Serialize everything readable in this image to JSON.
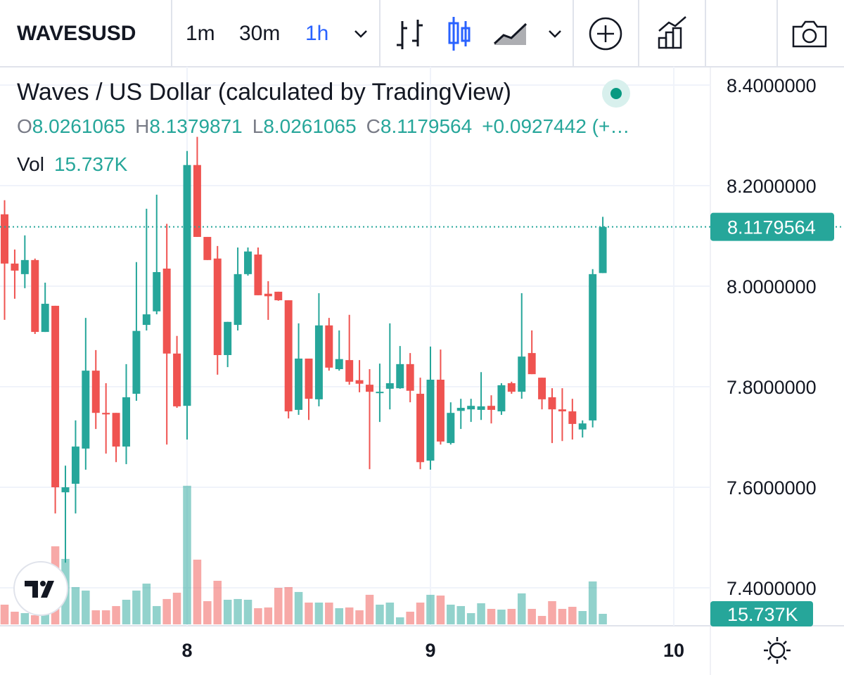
{
  "toolbar": {
    "symbol": "WAVESUSD",
    "intervals": [
      "1m",
      "30m",
      "1h"
    ],
    "active_interval": 2
  },
  "chart_data": {
    "type": "candlestick",
    "title": "Waves / US Dollar (calculated by TradingView)",
    "legend_labels": [
      "O",
      "H",
      "L",
      "C"
    ],
    "change_label": "+0.0927442 (+…",
    "up_color": "#26a69a",
    "down_color": "#ef5350",
    "grid": true,
    "x": [
      7.25,
      7.2917,
      7.3333,
      7.375,
      7.4167,
      7.4583,
      7.5,
      7.5417,
      7.5833,
      7.625,
      7.6667,
      7.7083,
      7.75,
      7.7917,
      7.8333,
      7.875,
      7.9167,
      7.9583,
      8,
      8.0417,
      8.0833,
      8.125,
      8.1667,
      8.2083,
      8.25,
      8.2917,
      8.3333,
      8.375,
      8.4167,
      8.4583,
      8.5,
      8.5417,
      8.5833,
      8.625,
      8.6667,
      8.7083,
      8.75,
      8.7917,
      8.8333,
      8.875,
      8.9167,
      8.9583,
      9,
      9.0417,
      9.0833,
      9.125,
      9.1667,
      9.2083,
      9.25,
      9.2917,
      9.3333,
      9.375,
      9.4167,
      9.4583,
      9.5,
      9.5417,
      9.5833,
      9.625,
      9.6667,
      9.7083
    ],
    "open": [
      8.143,
      8.045,
      8.024,
      8.052,
      7.909,
      7.961,
      7.59,
      7.607,
      7.677,
      7.832,
      7.748,
      7.748,
      7.681,
      7.786,
      7.923,
      7.95,
      8.035,
      7.866,
      7.762,
      8.241,
      8.098,
      8.055,
      7.863,
      7.923,
      8.024,
      8.063,
      7.985,
      7.989,
      7.972,
      7.754,
      7.856,
      7.775,
      7.922,
      7.835,
      7.853,
      7.813,
      7.804,
      7.789,
      7.796,
      7.797,
      7.845,
      7.786,
      7.653,
      7.814,
      7.688,
      7.752,
      7.755,
      7.754,
      7.762,
      7.751,
      7.807,
      7.79,
      7.867,
      7.818,
      7.779,
      7.755,
      7.751,
      7.715,
      7.733,
      8.0261065
    ],
    "high": [
      8.171,
      8.073,
      8.101,
      8.055,
      8.007,
      7.961,
      7.643,
      7.733,
      7.937,
      7.873,
      7.807,
      7.748,
      7.845,
      8.048,
      8.154,
      8.182,
      8.124,
      7.901,
      8.269,
      8.297,
      8.098,
      8.08,
      7.929,
      8.077,
      8.077,
      8.077,
      8.01,
      7.989,
      7.972,
      7.926,
      7.856,
      7.986,
      7.937,
      7.912,
      7.943,
      7.853,
      7.835,
      7.846,
      7.926,
      7.881,
      7.867,
      7.818,
      7.88,
      7.874,
      7.769,
      7.776,
      7.776,
      7.829,
      7.783,
      7.807,
      7.81,
      7.986,
      7.912,
      7.818,
      7.797,
      7.797,
      7.776,
      7.733,
      8.034,
      8.1379871
    ],
    "low": [
      7.933,
      7.975,
      7.996,
      7.905,
      7.909,
      7.548,
      7.45,
      7.548,
      7.635,
      7.716,
      7.667,
      7.65,
      7.646,
      7.772,
      7.912,
      7.944,
      7.685,
      7.758,
      7.695,
      8.098,
      8.052,
      7.824,
      7.839,
      7.912,
      8.021,
      7.982,
      7.933,
      7.971,
      7.737,
      7.744,
      7.734,
      7.761,
      7.832,
      7.832,
      7.804,
      7.789,
      7.636,
      7.73,
      7.755,
      7.796,
      7.769,
      7.636,
      7.635,
      7.685,
      7.685,
      7.716,
      7.73,
      7.734,
      7.727,
      7.744,
      7.786,
      7.776,
      7.825,
      7.755,
      7.688,
      7.692,
      7.695,
      7.699,
      7.719,
      8.0261065
    ],
    "close": [
      8.045,
      8.031,
      8.052,
      7.909,
      7.965,
      7.6,
      7.6,
      7.681,
      7.832,
      7.748,
      7.745,
      7.681,
      7.779,
      7.911,
      7.944,
      8.028,
      7.866,
      7.761,
      8.241,
      8.098,
      8.052,
      7.863,
      7.929,
      8.024,
      8.069,
      7.982,
      7.98,
      7.972,
      7.751,
      7.856,
      7.776,
      7.922,
      7.838,
      7.855,
      7.81,
      7.806,
      7.79,
      7.79,
      7.807,
      7.845,
      7.792,
      7.65,
      7.814,
      7.691,
      7.748,
      7.758,
      7.762,
      7.761,
      7.754,
      7.803,
      7.79,
      7.86,
      7.825,
      7.775,
      7.755,
      7.751,
      7.726,
      7.727,
      8.024,
      8.1179564
    ],
    "volume": {
      "name": "Vol",
      "values": [
        29.4,
        18.9,
        16.8,
        13.6,
        21.0,
        116.4,
        97.6,
        55.6,
        50.4,
        21.0,
        21.0,
        27.3,
        36.7,
        50.4,
        60.8,
        27.3,
        37.8,
        47.2,
        206.7,
        96.5,
        34.6,
        65.0,
        36.7,
        37.8,
        36.7,
        24.1,
        25.2,
        54.5,
        55.6,
        48.3,
        32.5,
        32.5,
        32.5,
        24.1,
        25.2,
        21.0,
        44.1,
        29.4,
        32.5,
        10.5,
        18.9,
        32.5,
        44.1,
        43.0,
        29.4,
        27.3,
        16.8,
        31.5,
        23.1,
        22.0,
        23.1,
        46.2,
        23.1,
        12.6,
        34.6,
        23.1,
        26.2,
        19.9,
        64.0,
        15.737
      ]
    },
    "volume_readout": {
      "value": 15.737,
      "label": "15.737K"
    },
    "ylim": [
      7.3245,
      8.4364
    ],
    "yticks": [
      {
        "value": 7.4,
        "label": "7.4000000"
      },
      {
        "value": 7.6,
        "label": "7.6000000"
      },
      {
        "value": 7.8,
        "label": "7.8000000"
      },
      {
        "value": 8.0,
        "label": "8.0000000"
      },
      {
        "value": 8.2,
        "label": "8.2000000"
      },
      {
        "value": 8.4,
        "label": "8.4000000"
      }
    ],
    "xlim": [
      7.2312,
      10.1503
    ],
    "xticks": [
      8,
      9,
      10
    ]
  }
}
